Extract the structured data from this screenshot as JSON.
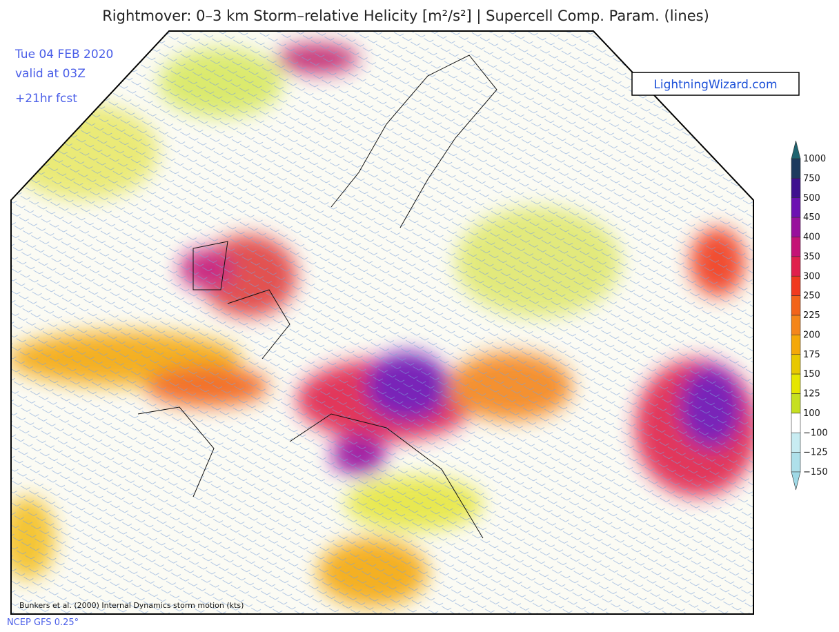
{
  "header": {
    "title": "Rightmover: 0–3 km Storm–relative Helicity [m²/s²] | Supercell Comp. Param. (lines)"
  },
  "valid": {
    "date": "Tue 04 FEB 2020",
    "time": "valid at 03Z",
    "forecast": "+21hr fcst"
  },
  "logo": "LightningWizard.com",
  "colorbar": {
    "top_color": "#1f6470",
    "bottom_color": "#9fd9e6",
    "labels": [
      "1000",
      "750",
      "500",
      "450",
      "400",
      "350",
      "300",
      "250",
      "225",
      "200",
      "175",
      "150",
      "125",
      "100",
      "−100",
      "−125",
      "−150"
    ],
    "colors": [
      "#1d3a5e",
      "#3e0f8f",
      "#6c10b2",
      "#98109c",
      "#c41476",
      "#e0214c",
      "#f03a1e",
      "#f2641a",
      "#f4861a",
      "#f4a808",
      "#e8c800",
      "#e6e600",
      "#c6e020",
      "#ffffff",
      "#c8ecf2",
      "#aee0ea"
    ]
  },
  "footer": {
    "note": "Bunkers et al. (2000) Internal Dynamics storm motion (kts)",
    "model": "NCEP GFS 0.25°"
  }
}
